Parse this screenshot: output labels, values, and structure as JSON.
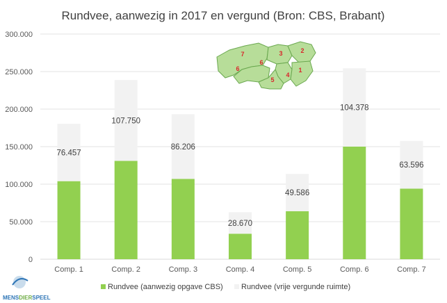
{
  "chart_data": {
    "type": "bar",
    "stacked": true,
    "title": "Rundvee, aanwezig in 2017 en vergund (Bron: CBS, Brabant)",
    "categories": [
      "Comp. 1",
      "Comp. 2",
      "Comp. 3",
      "Comp. 4",
      "Comp. 5",
      "Comp. 6",
      "Comp. 7"
    ],
    "series": [
      {
        "name": "Rundvee (aanwezig opgave CBS)",
        "color": "#92d050",
        "values": [
          104000,
          131000,
          107000,
          34000,
          64000,
          150000,
          94000
        ]
      },
      {
        "name": "Rundvee (vrije vergunde ruimte)",
        "color": "#f2f2f2",
        "values": [
          76457,
          107750,
          86206,
          28670,
          49586,
          104378,
          63596
        ],
        "labels": [
          "76.457",
          "107.750",
          "86.206",
          "28.670",
          "49.586",
          "104.378",
          "63.596"
        ]
      }
    ],
    "ylim": [
      0,
      300000
    ],
    "yticks": [
      0,
      50000,
      100000,
      150000,
      200000,
      250000,
      300000
    ],
    "ytick_labels": [
      "0",
      "50.000",
      "100.000",
      "150.000",
      "200.000",
      "250.000",
      "300.000"
    ],
    "grid": true,
    "legend_position": "bottom"
  },
  "map_inset": {
    "region_numbers": [
      "1",
      "2",
      "3",
      "4",
      "5",
      "6",
      "7"
    ],
    "fill_color": "#b7dd99",
    "number_color": "#d9262b"
  },
  "logo": {
    "text_parts": [
      "MENS",
      "DIER",
      "SPEEL"
    ]
  }
}
